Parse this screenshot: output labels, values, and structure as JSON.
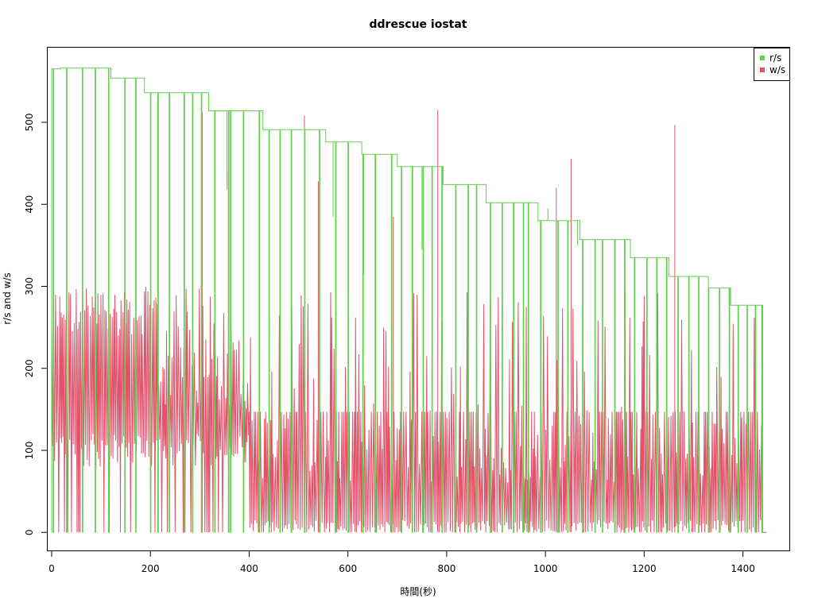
{
  "chart_data": {
    "type": "line",
    "title": "ddrescue iostat",
    "xlabel": "時間(秒)",
    "ylabel": "r/s and w/s",
    "xlim": [
      -8,
      1494
    ],
    "ylim": [
      -22,
      591
    ],
    "x_ticks": [
      0,
      200,
      400,
      600,
      800,
      1000,
      1200,
      1400
    ],
    "y_ticks": [
      0,
      100,
      200,
      300,
      400,
      500
    ],
    "grid": false,
    "legend_position": "top-right",
    "series": [
      {
        "name": "r/s",
        "color": "#61d04f",
        "level_steps": [
          {
            "x_start": 0,
            "x_end": 18,
            "y": 565
          },
          {
            "x_start": 18,
            "x_end": 120,
            "y": 566
          },
          {
            "x_start": 120,
            "x_end": 188,
            "y": 554
          },
          {
            "x_start": 188,
            "x_end": 318,
            "y": 536
          },
          {
            "x_start": 318,
            "x_end": 428,
            "y": 514
          },
          {
            "x_start": 428,
            "x_end": 555,
            "y": 491
          },
          {
            "x_start": 555,
            "x_end": 628,
            "y": 476
          },
          {
            "x_start": 628,
            "x_end": 700,
            "y": 461
          },
          {
            "x_start": 700,
            "x_end": 793,
            "y": 446
          },
          {
            "x_start": 793,
            "x_end": 880,
            "y": 424
          },
          {
            "x_start": 880,
            "x_end": 985,
            "y": 402
          },
          {
            "x_start": 985,
            "x_end": 1070,
            "y": 380
          },
          {
            "x_start": 1070,
            "x_end": 1172,
            "y": 357
          },
          {
            "x_start": 1172,
            "x_end": 1250,
            "y": 335
          },
          {
            "x_start": 1250,
            "x_end": 1330,
            "y": 312
          },
          {
            "x_start": 1330,
            "x_end": 1375,
            "y": 298
          },
          {
            "x_start": 1375,
            "x_end": 1440,
            "y": 277
          }
        ],
        "drop_x": [
          3,
          30,
          62,
          88,
          115,
          148,
          170,
          200,
          215,
          238,
          268,
          285,
          303,
          330,
          358,
          362,
          388,
          420,
          440,
          462,
          485,
          512,
          542,
          575,
          600,
          630,
          655,
          688,
          708,
          730,
          752,
          770,
          790,
          818,
          843,
          860,
          888,
          912,
          935,
          955,
          965,
          990,
          1025,
          1045,
          1075,
          1100,
          1115,
          1140,
          1160,
          1180,
          1205,
          1225,
          1245,
          1268,
          1290,
          1310,
          1330,
          1352,
          1372,
          1390,
          1408,
          1425,
          1438
        ],
        "spikes_down": [
          {
            "x": 355,
            "y": 418
          },
          {
            "x": 570,
            "y": 385
          },
          {
            "x": 632,
            "y": 315
          },
          {
            "x": 750,
            "y": 345
          },
          {
            "x": 1005,
            "y": 395
          },
          {
            "x": 1065,
            "y": 350
          }
        ]
      },
      {
        "name": "w/s",
        "color": "#df536b",
        "sawtooth_segments": [
          {
            "x_start": 0,
            "x_end": 200,
            "peak_min": 240,
            "peak_max": 300,
            "low": 80
          },
          {
            "x_start": 200,
            "x_end": 400,
            "peak_min": 150,
            "peak_max": 300,
            "low": 80
          },
          {
            "x_start": 400,
            "x_end": 1440,
            "peak_min": 60,
            "peak_max": 300,
            "low": 0,
            "cap": 147
          }
        ],
        "spikes": [
          {
            "x": 305,
            "y": 512
          },
          {
            "x": 358,
            "y": 440
          },
          {
            "x": 512,
            "y": 508
          },
          {
            "x": 540,
            "y": 428
          },
          {
            "x": 692,
            "y": 385
          },
          {
            "x": 782,
            "y": 515
          },
          {
            "x": 1022,
            "y": 420
          },
          {
            "x": 1052,
            "y": 455
          },
          {
            "x": 1262,
            "y": 497
          }
        ]
      }
    ]
  }
}
